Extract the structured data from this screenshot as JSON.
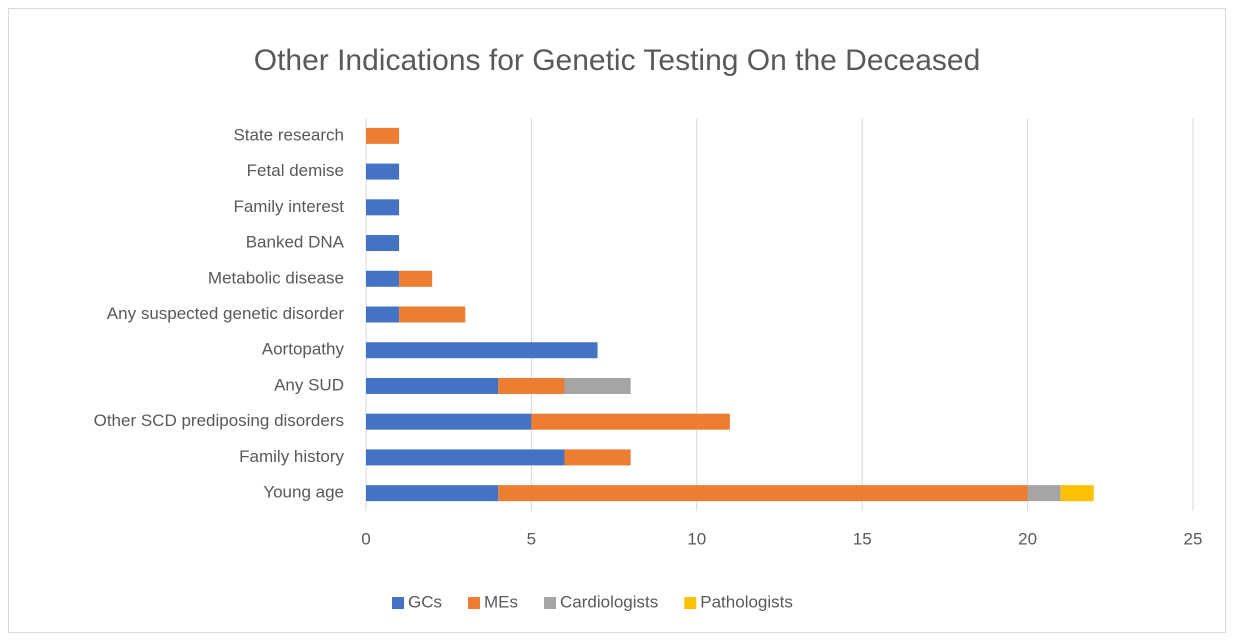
{
  "chart_data": {
    "type": "stacked_barh",
    "title": "Other Indications for Genetic Testing On the Deceased",
    "categories": [
      "State research",
      "Fetal demise",
      "Family interest",
      "Banked DNA",
      "Metabolic disease",
      "Any suspected genetic disorder",
      "Aortopathy",
      "Any SUD",
      "Other SCD prediposing disorders",
      "Family history",
      "Young age"
    ],
    "series": [
      {
        "name": "GCs",
        "color": "#4472c4",
        "values": [
          0,
          1,
          1,
          1,
          1,
          1,
          7,
          4,
          5,
          6,
          4
        ]
      },
      {
        "name": "MEs",
        "color": "#ed7d31",
        "values": [
          1,
          0,
          0,
          0,
          1,
          2,
          0,
          2,
          6,
          2,
          16
        ]
      },
      {
        "name": "Cardiologists",
        "color": "#a5a5a5",
        "values": [
          0,
          0,
          0,
          0,
          0,
          0,
          0,
          2,
          0,
          0,
          1
        ]
      },
      {
        "name": "Pathologists",
        "color": "#ffc000",
        "values": [
          0,
          0,
          0,
          0,
          0,
          0,
          0,
          0,
          0,
          0,
          1
        ]
      }
    ],
    "xlim": [
      0,
      25
    ],
    "xticks": [
      0,
      5,
      10,
      15,
      20,
      25
    ],
    "grid": true,
    "legend": "bottom"
  }
}
